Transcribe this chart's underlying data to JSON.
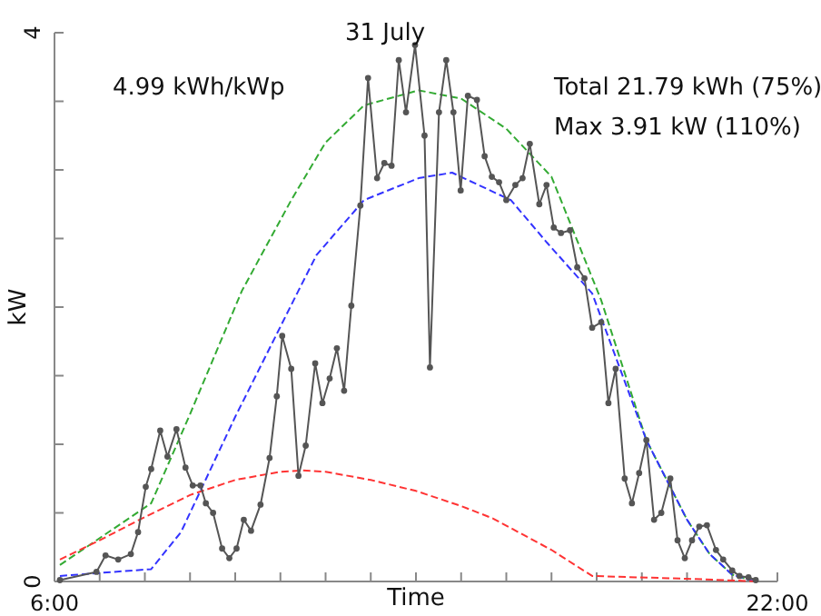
{
  "chart_data": {
    "type": "line",
    "title": "31 July",
    "xlabel": "Time",
    "ylabel": "kW",
    "annotations": [
      "4.99 kWh/kWp",
      "Total 21.79 kWh (75%)",
      "Max 3.91 kW (110%)"
    ],
    "xlim": [
      6,
      22
    ],
    "ylim": [
      0,
      4
    ],
    "xticks": [
      {
        "value": 6,
        "label": "6:00"
      },
      {
        "value": 7,
        "label": null
      },
      {
        "value": 8,
        "label": null
      },
      {
        "value": 9,
        "label": null
      },
      {
        "value": 10,
        "label": null
      },
      {
        "value": 11,
        "label": null
      },
      {
        "value": 12,
        "label": null
      },
      {
        "value": 13,
        "label": null
      },
      {
        "value": 14,
        "label": null
      },
      {
        "value": 15,
        "label": null
      },
      {
        "value": 16,
        "label": null
      },
      {
        "value": 17,
        "label": null
      },
      {
        "value": 18,
        "label": null
      },
      {
        "value": 19,
        "label": null
      },
      {
        "value": 20,
        "label": null
      },
      {
        "value": 21,
        "label": null
      },
      {
        "value": 22,
        "label": "22:00"
      }
    ],
    "yticks": [
      0,
      {
        "value": 0.5,
        "label": null
      },
      {
        "value": 1,
        "label": null
      },
      {
        "value": 1.5,
        "label": null
      },
      {
        "value": 2,
        "label": null
      },
      {
        "value": 2.5,
        "label": null
      },
      {
        "value": 3,
        "label": null
      },
      {
        "value": 3.5,
        "label": null
      },
      4
    ],
    "grid": false,
    "series": [
      {
        "color": "#33aa33",
        "line_style": "dashed",
        "marker": "none",
        "x": [
          6.12,
          8.14,
          9,
          10.15,
          11.24,
          12,
          12.85,
          14.06,
          15,
          16,
          17,
          18.1,
          19.1,
          20,
          20.5,
          21,
          21.5
        ],
        "values": [
          0.12,
          0.57,
          1.22,
          2.12,
          2.78,
          3.2,
          3.47,
          3.58,
          3.52,
          3.3,
          2.95,
          2.05,
          1.03,
          0.45,
          0.2,
          0.05,
          0
        ]
      },
      {
        "color": "#3333ff",
        "line_style": "dashed",
        "marker": "none",
        "x": [
          6.12,
          8.14,
          8.8,
          10,
          11.4,
          11.8,
          12.85,
          14.06,
          14.8,
          16.1,
          16.9,
          17.9,
          19.1,
          20,
          20.5,
          21,
          21.5
        ],
        "values": [
          0.04,
          0.09,
          0.36,
          1.2,
          2.12,
          2.38,
          2.78,
          2.94,
          2.98,
          2.78,
          2.47,
          2.1,
          1.03,
          0.45,
          0.2,
          0.05,
          0
        ]
      },
      {
        "color": "#ff3333",
        "line_style": "dashed",
        "marker": "none",
        "x": [
          6.12,
          7,
          8,
          9,
          10,
          11,
          11.5,
          12,
          13,
          14,
          15,
          15.7,
          17,
          17.9,
          20,
          21.6
        ],
        "values": [
          0.16,
          0.3,
          0.47,
          0.63,
          0.74,
          0.8,
          0.81,
          0.8,
          0.74,
          0.66,
          0.55,
          0.46,
          0.23,
          0.04,
          0.02,
          0
        ]
      },
      {
        "color": "#555555",
        "line_style": "solid",
        "marker": "circle",
        "x": [
          6.12,
          6.93,
          7.13,
          7.41,
          7.69,
          7.85,
          8.02,
          8.14,
          8.34,
          8.5,
          8.7,
          8.9,
          9.06,
          9.23,
          9.35,
          9.51,
          9.71,
          9.87,
          10.03,
          10.19,
          10.35,
          10.56,
          10.76,
          10.92,
          11.04,
          11.24,
          11.4,
          11.56,
          11.77,
          11.93,
          12.09,
          12.25,
          12.41,
          12.57,
          12.77,
          12.94,
          13.14,
          13.3,
          13.46,
          13.62,
          13.78,
          13.98,
          14.19,
          14.31,
          14.51,
          14.67,
          14.83,
          14.99,
          15.15,
          15.35,
          15.52,
          15.68,
          15.84,
          16.0,
          16.2,
          16.36,
          16.52,
          16.73,
          16.89,
          17.05,
          17.21,
          17.41,
          17.57,
          17.73,
          17.9,
          18.1,
          18.26,
          18.42,
          18.62,
          18.78,
          18.94,
          19.1,
          19.27,
          19.43,
          19.63,
          19.79,
          19.95,
          20.11,
          20.27,
          20.44,
          20.64,
          20.8,
          21.0,
          21.16,
          21.36,
          21.52
        ],
        "values": [
          0.01,
          0.07,
          0.19,
          0.16,
          0.2,
          0.36,
          0.69,
          0.82,
          1.1,
          0.91,
          1.11,
          0.83,
          0.7,
          0.7,
          0.57,
          0.5,
          0.24,
          0.17,
          0.24,
          0.45,
          0.37,
          0.56,
          0.9,
          1.35,
          1.79,
          1.55,
          0.77,
          0.99,
          1.59,
          1.3,
          1.48,
          1.7,
          1.39,
          2.01,
          2.74,
          3.67,
          2.94,
          3.05,
          3.03,
          3.8,
          3.42,
          3.91,
          3.25,
          1.56,
          3.42,
          3.8,
          3.42,
          2.85,
          3.54,
          3.51,
          3.1,
          2.95,
          2.91,
          2.78,
          2.89,
          2.94,
          3.19,
          2.75,
          2.89,
          2.58,
          2.54,
          2.56,
          2.29,
          2.21,
          1.85,
          1.89,
          1.3,
          1.55,
          0.75,
          0.57,
          0.79,
          1.03,
          0.45,
          0.5,
          0.75,
          0.3,
          0.17,
          0.3,
          0.4,
          0.41,
          0.23,
          0.16,
          0.08,
          0.04,
          0.03,
          0.01
        ]
      }
    ]
  }
}
